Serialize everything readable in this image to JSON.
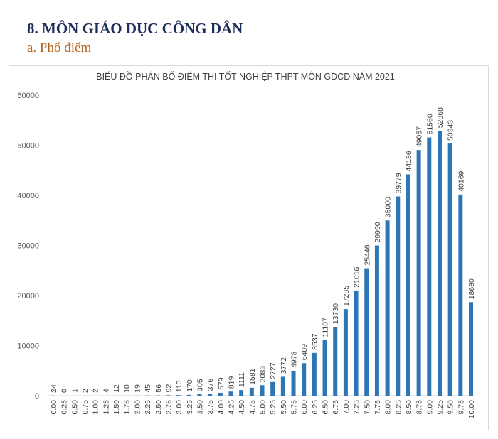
{
  "heading": {
    "section": "8.  MÔN GIÁO DỤC CÔNG DÂN",
    "subsection": "a.  Phổ điểm"
  },
  "chart_data": {
    "type": "bar",
    "title": "BIỂU ĐỒ PHÂN BỐ ĐIỂM THI TỐT NGHIỆP THPT MÔN GDCD NĂM 2021",
    "xlabel": "",
    "ylabel": "",
    "ylim": [
      0,
      60000
    ],
    "yticks": [
      0,
      10000,
      20000,
      30000,
      40000,
      50000,
      60000
    ],
    "grid": false,
    "bar_color": "#2e75b6",
    "categories": [
      "0.00",
      "0.25",
      "0.50",
      "0.75",
      "1.00",
      "1.25",
      "1.50",
      "1.75",
      "2.00",
      "2.25",
      "2.50",
      "2.75",
      "3.00",
      "3.25",
      "3.50",
      "3.75",
      "4.00",
      "4.25",
      "4.50",
      "4.75",
      "5.00",
      "5.25",
      "5.50",
      "5.75",
      "6.00",
      "6.25",
      "6.50",
      "6.75",
      "7.00",
      "7.25",
      "7.50",
      "7.75",
      "8.00",
      "8.25",
      "8.50",
      "8.75",
      "9.00",
      "9.25",
      "9.50",
      "9.75",
      "10.00"
    ],
    "values": [
      24,
      0,
      1,
      2,
      2,
      4,
      12,
      10,
      19,
      45,
      56,
      92,
      113,
      170,
      305,
      376,
      579,
      819,
      1111,
      1581,
      2083,
      2727,
      3772,
      4978,
      6489,
      8537,
      11107,
      13730,
      17285,
      21016,
      25446,
      29990,
      35000,
      39779,
      44186,
      49057,
      51560,
      52868,
      50343,
      40169,
      18680
    ]
  }
}
